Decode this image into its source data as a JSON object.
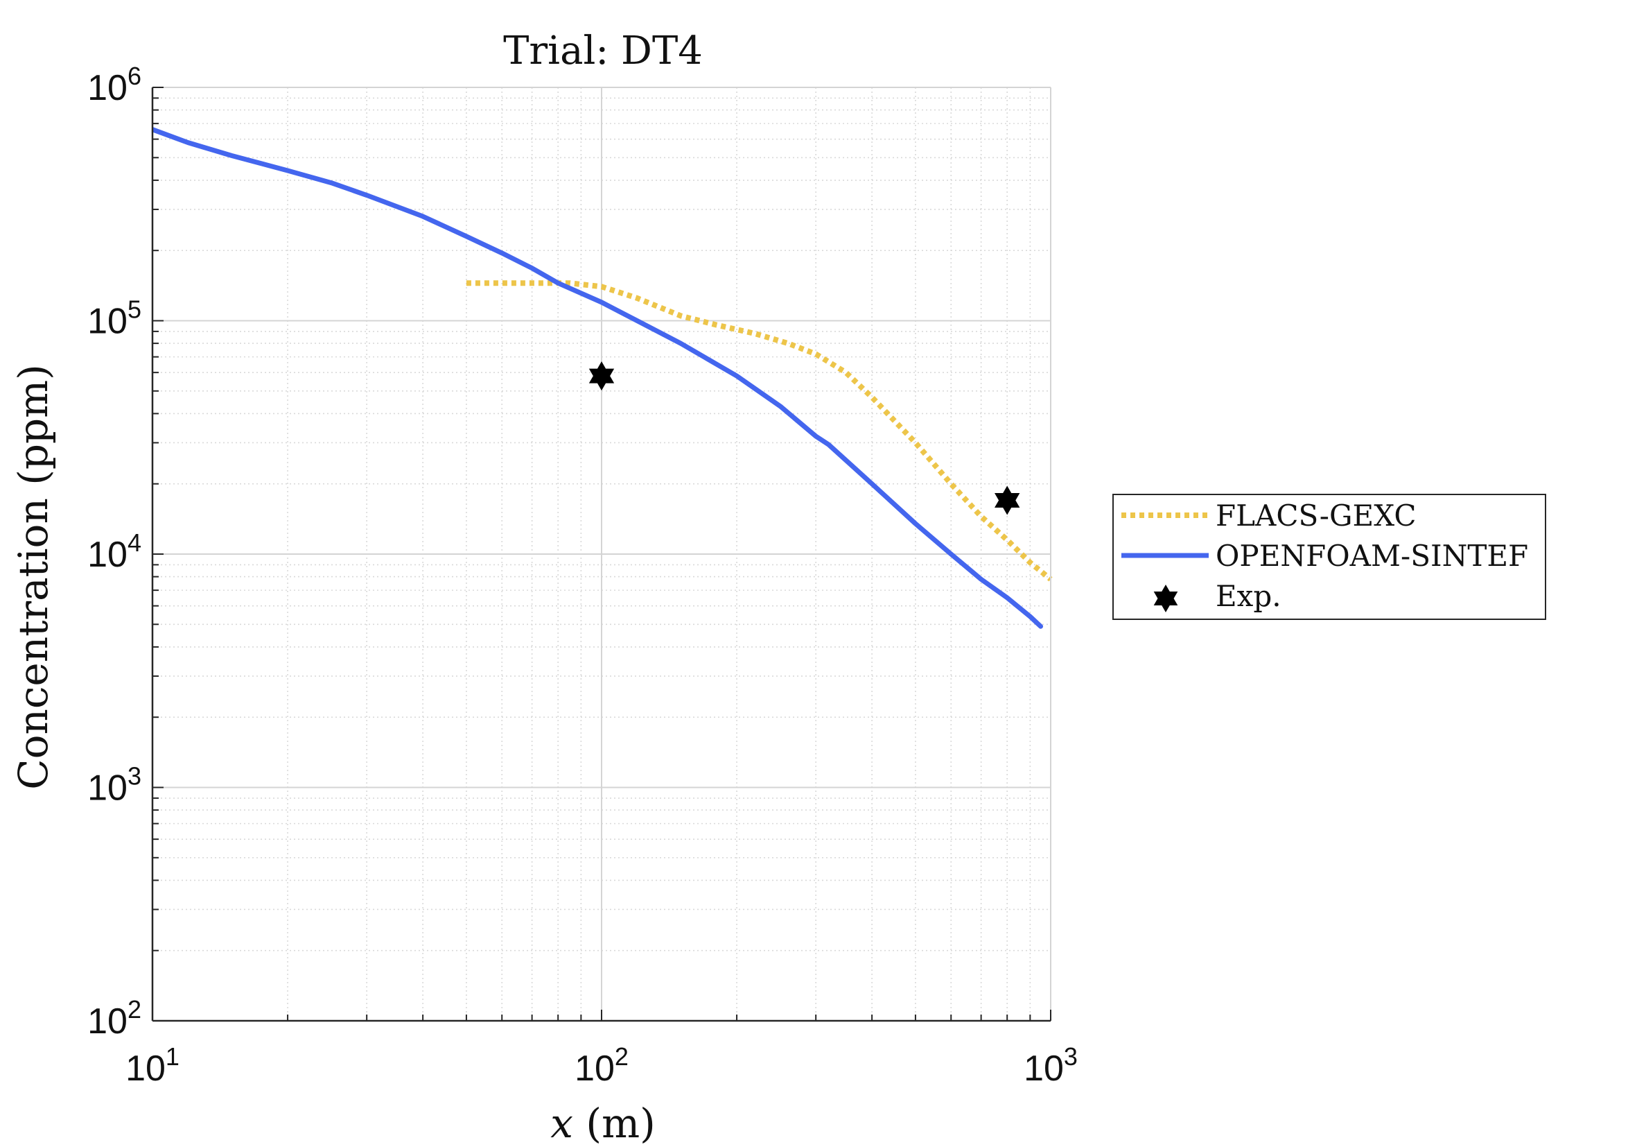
{
  "chart_data": {
    "type": "line",
    "title": "Trial: DT4",
    "xlabel_var": "x",
    "xlabel_unit": " (m)",
    "ylabel": "Concentration (ppm)",
    "xscale": "log",
    "yscale": "log",
    "xlim": [
      10,
      1000
    ],
    "ylim": [
      100,
      1000000
    ],
    "xticks": [
      {
        "value": 10,
        "base": "10",
        "exp": "1"
      },
      {
        "value": 100,
        "base": "10",
        "exp": "2"
      },
      {
        "value": 1000,
        "base": "10",
        "exp": "3"
      }
    ],
    "yticks": [
      {
        "value": 100,
        "base": "10",
        "exp": "2"
      },
      {
        "value": 1000,
        "base": "10",
        "exp": "3"
      },
      {
        "value": 10000,
        "base": "10",
        "exp": "4"
      },
      {
        "value": 100000,
        "base": "10",
        "exp": "5"
      },
      {
        "value": 1000000,
        "base": "10",
        "exp": "6"
      }
    ],
    "grid": true,
    "minor_grid": true,
    "legend_position": "outside-right",
    "series": [
      {
        "name": "FLACS-GEXC",
        "style": "dotted",
        "color": "#EDC54A",
        "points": [
          [
            50,
            145000
          ],
          [
            60,
            145000
          ],
          [
            70,
            145000
          ],
          [
            85,
            145000
          ],
          [
            100,
            140000
          ],
          [
            120,
            125000
          ],
          [
            150,
            105000
          ],
          [
            180,
            96000
          ],
          [
            220,
            88000
          ],
          [
            260,
            80000
          ],
          [
            300,
            72000
          ],
          [
            350,
            60000
          ],
          [
            400,
            47000
          ],
          [
            500,
            30000
          ],
          [
            600,
            20000
          ],
          [
            700,
            14500
          ],
          [
            800,
            11500
          ],
          [
            900,
            9200
          ],
          [
            1000,
            7800
          ]
        ]
      },
      {
        "name": "OPENFOAM-SINTEF",
        "style": "solid",
        "color": "#4466EE",
        "points": [
          [
            10,
            660000
          ],
          [
            12,
            580000
          ],
          [
            15,
            510000
          ],
          [
            20,
            440000
          ],
          [
            25,
            390000
          ],
          [
            30,
            345000
          ],
          [
            40,
            280000
          ],
          [
            50,
            230000
          ],
          [
            60,
            195000
          ],
          [
            70,
            168000
          ],
          [
            80,
            145000
          ],
          [
            100,
            120000
          ],
          [
            120,
            100000
          ],
          [
            150,
            80000
          ],
          [
            200,
            58000
          ],
          [
            250,
            43000
          ],
          [
            300,
            32000
          ],
          [
            320,
            29500
          ],
          [
            400,
            20000
          ],
          [
            500,
            13500
          ],
          [
            600,
            10000
          ],
          [
            700,
            7800
          ],
          [
            800,
            6500
          ],
          [
            900,
            5400
          ],
          [
            950,
            4900
          ]
        ]
      },
      {
        "name": "Exp.",
        "style": "marker",
        "marker": "hexagram",
        "color": "#000000",
        "points": [
          [
            100,
            58000
          ],
          [
            800,
            17000
          ]
        ]
      }
    ]
  }
}
